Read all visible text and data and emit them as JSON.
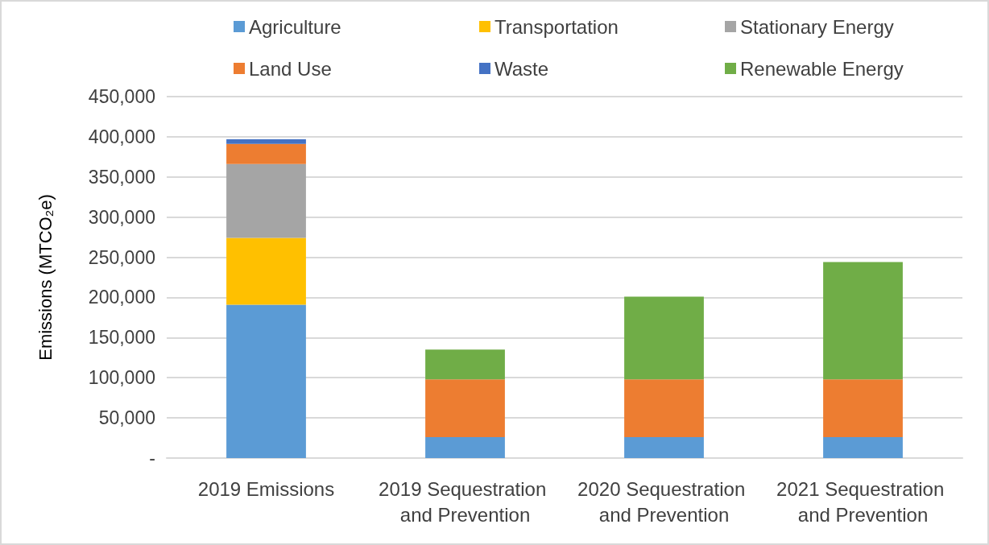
{
  "chart_data": {
    "type": "bar",
    "stacked": true,
    "categories": [
      "2019 Emissions",
      "2019 Sequestration and Prevention",
      "2020 Sequestration and Prevention",
      "2021 Sequestration and Prevention"
    ],
    "series": [
      {
        "name": "Agriculture",
        "color": "#5b9bd5",
        "values": [
          191000,
          26000,
          26000,
          26000
        ]
      },
      {
        "name": "Transportation",
        "color": "#ffc000",
        "values": [
          83000,
          null,
          null,
          null
        ]
      },
      {
        "name": "Stationary Energy",
        "color": "#a5a5a5",
        "values": [
          92000,
          null,
          null,
          null
        ]
      },
      {
        "name": "Land Use",
        "color": "#ed7d31",
        "values": [
          25000,
          72000,
          72000,
          72000
        ]
      },
      {
        "name": "Waste",
        "color": "#4472c4",
        "values": [
          6000,
          null,
          null,
          null
        ]
      },
      {
        "name": "Renewable Energy",
        "color": "#70ad47",
        "values": [
          null,
          37000,
          103000,
          146000
        ]
      }
    ],
    "ylabel": "Emissions (MTCO₂e)",
    "ylim": [
      0,
      450000
    ],
    "yticks": [
      {
        "value": 0,
        "label": "-"
      },
      {
        "value": 50000,
        "label": "50,000"
      },
      {
        "value": 100000,
        "label": "100,000"
      },
      {
        "value": 150000,
        "label": "150,000"
      },
      {
        "value": 200000,
        "label": "200,000"
      },
      {
        "value": 250000,
        "label": "250,000"
      },
      {
        "value": 300000,
        "label": "300,000"
      },
      {
        "value": 350000,
        "label": "350,000"
      },
      {
        "value": 400000,
        "label": "400,000"
      },
      {
        "value": 450000,
        "label": "450,000"
      }
    ],
    "grid": "y",
    "legend": "top"
  }
}
